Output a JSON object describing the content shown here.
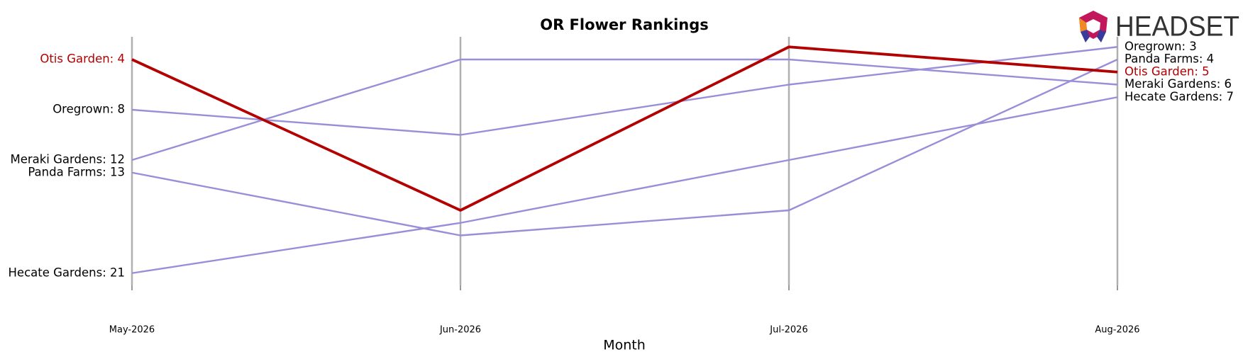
{
  "chart_data": {
    "type": "bump",
    "title": "OR Flower Rankings",
    "x_label": "Month",
    "logo": "HEADSET",
    "categories": [
      "May-2026",
      "Jun-2026",
      "Jul-2026",
      "Aug-2026"
    ],
    "ylim": [
      22,
      2
    ],
    "series": [
      {
        "color": "#9a8ed8",
        "values": [
          8,
          10,
          6,
          3
        ],
        "value_labels": [
          "Oregrown: 8",
          null,
          null,
          "Oregrown: 3"
        ]
      },
      {
        "color": "#9a8ed8",
        "values": [
          12,
          4,
          4,
          6
        ],
        "value_labels": [
          "Meraki Gardens: 12",
          null,
          null,
          "Meraki Gardens: 6"
        ]
      },
      {
        "color": "#9a8ed8",
        "values": [
          13,
          18,
          16,
          4
        ],
        "value_labels": [
          "Panda Farms: 13",
          null,
          null,
          "Panda Farms: 4"
        ]
      },
      {
        "color": "#9a8ed8",
        "values": [
          21,
          17,
          12,
          7
        ],
        "value_labels": [
          "Hecate Gardens: 21",
          null,
          null,
          "Hecate Gardens: 7"
        ]
      },
      {
        "color": "#b30000",
        "highlight": true,
        "values": [
          4,
          16,
          3,
          5
        ],
        "value_labels": [
          "Otis Garden: 4",
          null,
          null,
          "Otis Garden: 5"
        ]
      }
    ]
  }
}
